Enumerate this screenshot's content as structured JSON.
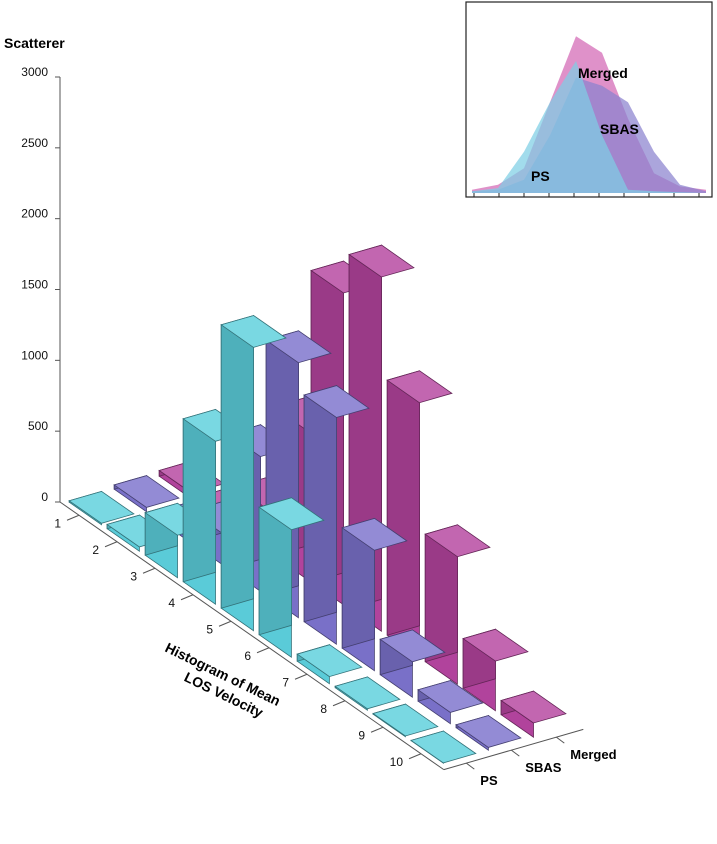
{
  "chart_data": [
    {
      "type": "bar",
      "subtype": "3d-bar",
      "title": "",
      "zlabel": "Scatterer",
      "xlabel": "Histogram of Mean LOS Velocity",
      "categories": [
        "1",
        "2",
        "3",
        "4",
        "5",
        "6",
        "7",
        "8",
        "9",
        "10"
      ],
      "z_ticks": [
        "0",
        "500",
        "1000",
        "1500",
        "2000",
        "2500",
        "3000"
      ],
      "zlim": [
        0,
        3000
      ],
      "grid": false,
      "series": [
        {
          "name": "PS",
          "color": "#5ccfdc",
          "values": [
            10,
            30,
            300,
            1150,
            2000,
            900,
            50,
            10,
            5,
            2
          ]
        },
        {
          "name": "SBAS",
          "color": "#7b72cc",
          "values": [
            30,
            20,
            220,
            950,
            1800,
            1600,
            850,
            250,
            80,
            20
          ]
        },
        {
          "name": "Merged",
          "color": "#b5449f",
          "values": [
            40,
            40,
            300,
            1050,
            2200,
            2500,
            1800,
            900,
            350,
            100
          ]
        }
      ]
    },
    {
      "type": "area",
      "inset": true,
      "series": [
        {
          "name": "Merged",
          "color": "#d267b4",
          "values": [
            0.02,
            0.05,
            0.15,
            0.55,
            0.95,
            0.85,
            0.45,
            0.12,
            0.04,
            0.02
          ]
        },
        {
          "name": "SBAS",
          "color": "#8a82cf",
          "values": [
            0.01,
            0.02,
            0.08,
            0.35,
            0.7,
            0.65,
            0.55,
            0.25,
            0.05,
            0.01
          ]
        },
        {
          "name": "PS",
          "color": "#7ecfe4",
          "values": [
            0.01,
            0.03,
            0.25,
            0.55,
            0.8,
            0.35,
            0.02,
            0.01,
            0.005,
            0.0
          ]
        }
      ]
    }
  ]
}
